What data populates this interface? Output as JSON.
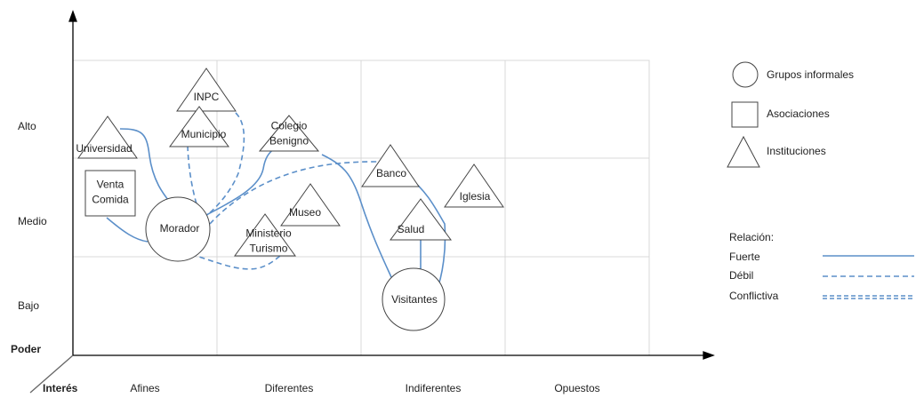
{
  "axes": {
    "y_title": "Poder",
    "x_title": "Interés",
    "y_levels": [
      "Alto",
      "Medio",
      "Bajo"
    ],
    "x_levels": [
      "Afines",
      "Diferentes",
      "Indiferentes",
      "Opuestos"
    ]
  },
  "nodes": [
    {
      "shape": "triangle",
      "label": [
        "INPC"
      ]
    },
    {
      "shape": "triangle",
      "label": [
        "Municipio"
      ]
    },
    {
      "shape": "triangle",
      "label": [
        "Universidad"
      ]
    },
    {
      "shape": "triangle",
      "label": [
        "Colegio",
        "Benigno"
      ]
    },
    {
      "shape": "square",
      "label": [
        "Venta",
        "Comida"
      ]
    },
    {
      "shape": "circle",
      "label": [
        "Morador"
      ]
    },
    {
      "shape": "triangle",
      "label": [
        "Museo"
      ]
    },
    {
      "shape": "triangle",
      "label": [
        "Ministerio",
        "Turismo"
      ]
    },
    {
      "shape": "triangle",
      "label": [
        "Banco"
      ]
    },
    {
      "shape": "triangle",
      "label": [
        "Iglesia"
      ]
    },
    {
      "shape": "triangle",
      "label": [
        "Salud"
      ]
    },
    {
      "shape": "circle",
      "label": [
        "Visitantes"
      ]
    }
  ],
  "legend": {
    "shapes": [
      "Grupos informales",
      "Asociaciones",
      "Instituciones"
    ],
    "relation_title": "Relación:",
    "relations": [
      "Fuerte",
      "Débil",
      "Conflictiva"
    ]
  }
}
